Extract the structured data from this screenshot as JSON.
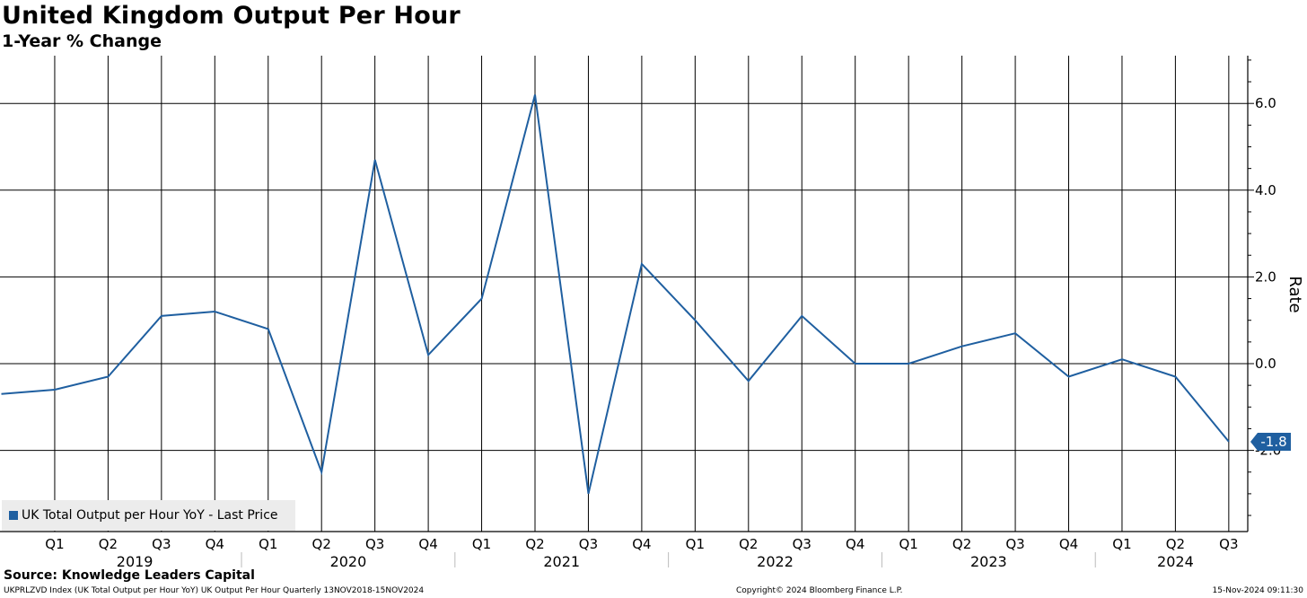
{
  "header": {
    "title": "United Kingdom Output Per Hour",
    "subtitle": "1-Year % Change"
  },
  "footer": {
    "source": "Source: Knowledge Leaders Capital",
    "left": "UKPRLZVD Index (UK Total Output per Hour YoY) UK Output Per Hour  Quarterly 13NOV2018-15NOV2024",
    "center": "Copyright© 2024 Bloomberg Finance L.P.",
    "right": "15-Nov-2024 09:11:30"
  },
  "legend": {
    "label": "UK Total Output per Hour YoY - Last Price"
  },
  "colors": {
    "line": "#1f5fa0",
    "grid": "#000000",
    "legend_bg": "#ececec"
  },
  "chart_data": {
    "type": "line",
    "title": "United Kingdom Output Per Hour",
    "subtitle": "1-Year % Change",
    "ylabel": "Rate",
    "ylim": [
      -3.9,
      7.1
    ],
    "y_ticks": [
      "6.0",
      "4.0",
      "2.0",
      "0.0",
      "-2.0"
    ],
    "y_tick_values": [
      6.0,
      4.0,
      2.0,
      0.0,
      -2.0
    ],
    "x_quarter_labels": [
      "Q1",
      "Q2",
      "Q3",
      "Q4",
      "Q1",
      "Q2",
      "Q3",
      "Q4",
      "Q1",
      "Q2",
      "Q3",
      "Q4",
      "Q1",
      "Q2",
      "Q3",
      "Q4",
      "Q1",
      "Q2",
      "Q3",
      "Q4",
      "Q1",
      "Q2",
      "Q3"
    ],
    "x_year_labels": [
      "2019",
      "2020",
      "2021",
      "2022",
      "2023",
      "2024"
    ],
    "last_value_label": "-1.8",
    "grid": true,
    "legend_position": "bottom-left",
    "series": [
      {
        "name": "UK Total Output per Hour YoY - Last Price",
        "x": [
          "2018 Q4",
          "2019 Q1",
          "2019 Q2",
          "2019 Q3",
          "2019 Q4",
          "2020 Q1",
          "2020 Q2",
          "2020 Q3",
          "2020 Q4",
          "2021 Q1",
          "2021 Q2",
          "2021 Q3",
          "2021 Q4",
          "2022 Q1",
          "2022 Q2",
          "2022 Q3",
          "2022 Q4",
          "2023 Q1",
          "2023 Q2",
          "2023 Q3",
          "2023 Q4",
          "2024 Q1",
          "2024 Q2",
          "2024 Q3"
        ],
        "values": [
          -0.7,
          -0.6,
          -0.3,
          1.1,
          1.2,
          0.8,
          -2.5,
          4.7,
          0.2,
          1.5,
          6.2,
          -3.0,
          2.3,
          1.0,
          -0.4,
          1.1,
          0.0,
          0.0,
          0.4,
          0.7,
          -0.3,
          0.1,
          -0.3,
          -1.8
        ]
      }
    ]
  }
}
